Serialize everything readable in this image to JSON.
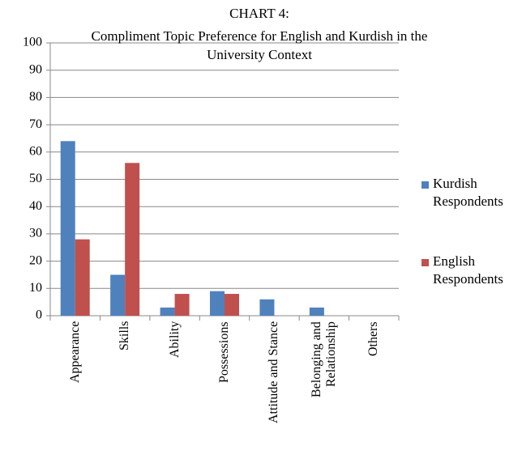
{
  "chart_data": {
    "type": "bar",
    "title": "CHART 4:",
    "subtitle": "Compliment Topic  Preference for English and Kurdish  in the University Context",
    "categories": [
      "Appearance",
      "Skills",
      "Ability",
      "Possessions",
      "Attitude and Stance",
      "Belonging and Relationship",
      "Others"
    ],
    "series": [
      {
        "name": "Kurdish Respondents",
        "color": "#4f81bd",
        "values": [
          64,
          15,
          3,
          9,
          6,
          3,
          0
        ]
      },
      {
        "name": "English Respondents",
        "color": "#c0504d",
        "values": [
          28,
          56,
          8,
          8,
          0,
          0,
          0
        ]
      }
    ],
    "ylim": [
      0,
      100
    ],
    "yticks": [
      0,
      10,
      20,
      30,
      40,
      50,
      60,
      70,
      80,
      90,
      100
    ],
    "grid": true,
    "legend": "right"
  }
}
